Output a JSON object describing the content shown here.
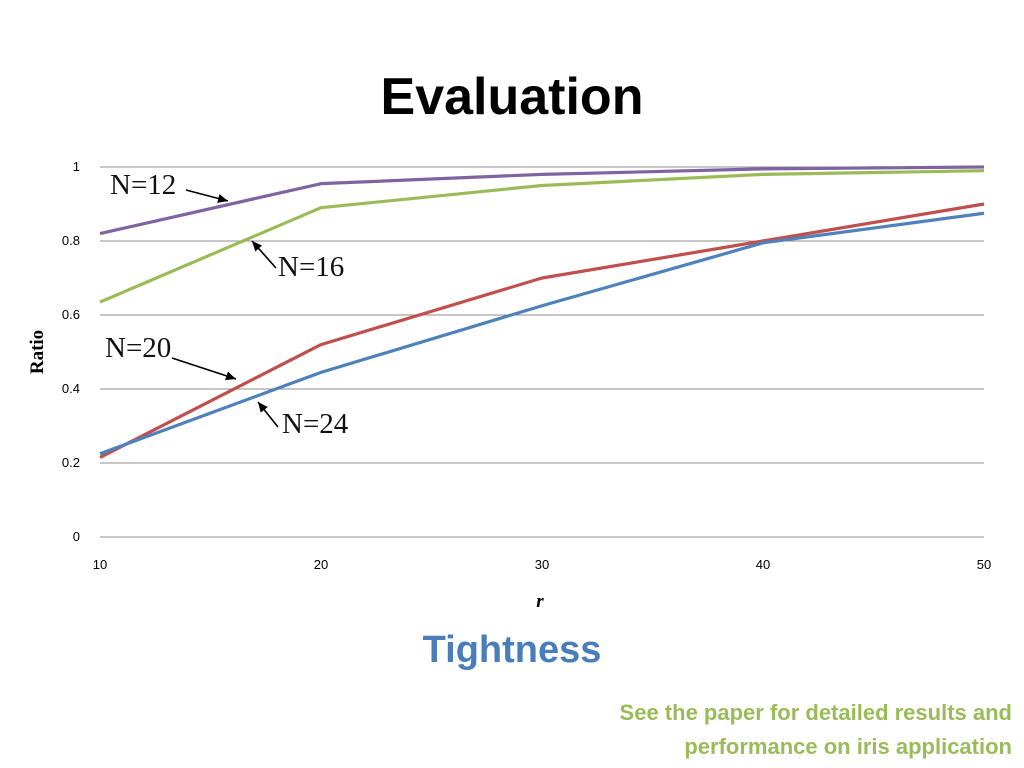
{
  "slide": {
    "title": "Evaluation",
    "caption": "Tightness",
    "caption_color": "#4a7ebb",
    "footnote_lines": [
      "See the paper for detailed results and",
      "performance on iris application"
    ],
    "footnote_color": "#9bbb59"
  },
  "chart_data": {
    "type": "line",
    "title": "",
    "xlabel": "r",
    "ylabel": "Ratio",
    "x": [
      10,
      20,
      30,
      40,
      50
    ],
    "xlim": [
      10,
      50
    ],
    "ylim": [
      0,
      1
    ],
    "x_ticks": [
      "10",
      "20",
      "30",
      "40",
      "50"
    ],
    "y_ticks": [
      "0",
      "0.2",
      "0.4",
      "0.6",
      "0.8",
      "1"
    ],
    "grid": "horizontal",
    "legend": "none",
    "series": [
      {
        "name": "N=12",
        "color": "#8064a2",
        "values": [
          0.82,
          0.955,
          0.98,
          0.995,
          1.0
        ]
      },
      {
        "name": "N=16",
        "color": "#9bbb59",
        "values": [
          0.635,
          0.89,
          0.95,
          0.98,
          0.99
        ]
      },
      {
        "name": "N=20",
        "color": "#c0504d",
        "values": [
          0.215,
          0.52,
          0.7,
          0.8,
          0.9
        ]
      },
      {
        "name": "N=24",
        "color": "#4f81bd",
        "values": [
          0.225,
          0.445,
          0.625,
          0.795,
          0.875
        ]
      }
    ],
    "annotations": [
      {
        "text": "N=12"
      },
      {
        "text": "N=16"
      },
      {
        "text": "N=20"
      },
      {
        "text": "N=24"
      }
    ]
  }
}
